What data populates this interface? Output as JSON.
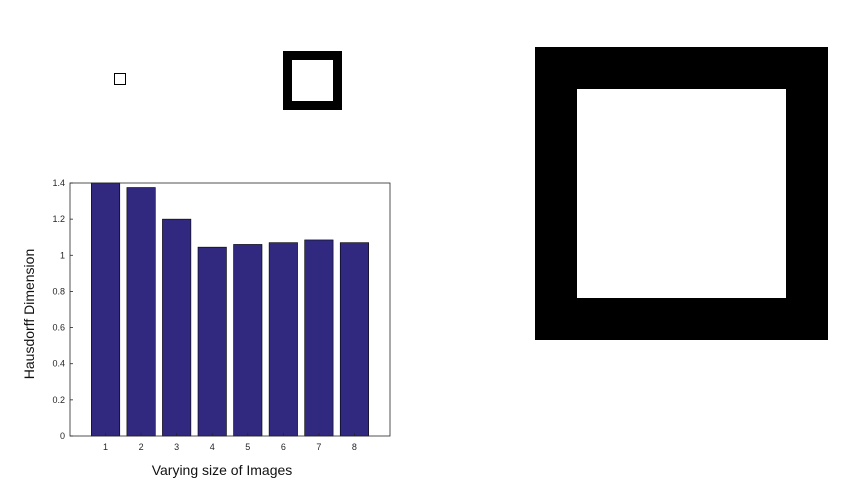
{
  "figures": [
    {
      "name": "small-square"
    },
    {
      "name": "medium-square"
    },
    {
      "name": "large-square"
    }
  ],
  "chart_data": {
    "type": "bar",
    "categories": [
      "1",
      "2",
      "3",
      "4",
      "5",
      "6",
      "7",
      "8"
    ],
    "values": [
      1.4,
      1.375,
      1.2,
      1.045,
      1.06,
      1.07,
      1.085,
      1.07
    ],
    "title": "",
    "xlabel": "Varying size of Images",
    "ylabel": "Hausdorff Dimension",
    "ylim": [
      0,
      1.4
    ],
    "yticks": [
      0,
      0.2,
      0.4,
      0.6,
      0.8,
      1,
      1.2,
      1.4
    ],
    "ytick_labels": [
      "0",
      "0.2",
      "0.4",
      "0.6",
      "0.8",
      "1",
      "1.2",
      "1.4"
    ],
    "bar_color": "#30297f",
    "grid": false,
    "legend": "none"
  }
}
